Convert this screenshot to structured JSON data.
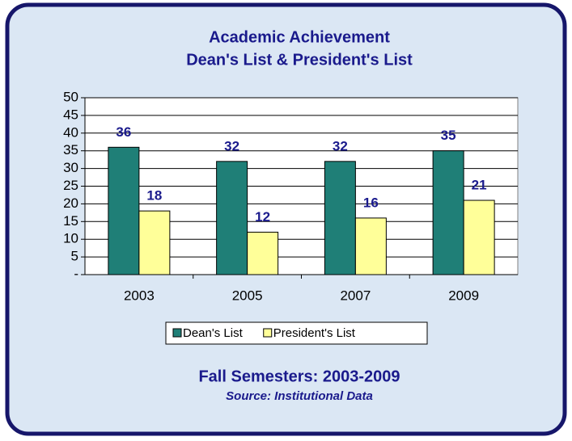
{
  "chart_data": {
    "type": "bar",
    "title": "Academic Achievement",
    "subtitle": "Dean's List & President's List",
    "categories": [
      "2003",
      "2005",
      "2007",
      "2009"
    ],
    "series": [
      {
        "name": "Dean's List",
        "color": "#1f7f77",
        "values": [
          36,
          32,
          32,
          35
        ]
      },
      {
        "name": "President's List",
        "color": "#ffff99",
        "values": [
          18,
          12,
          16,
          21
        ]
      }
    ],
    "ylim": [
      0,
      50
    ],
    "yticks": [
      {
        "value": 0,
        "label": "-"
      },
      5,
      10,
      15,
      20,
      25,
      30,
      35,
      40,
      45,
      50
    ],
    "grid": true,
    "legend": "bottom",
    "footer": "Fall Semesters: 2003-2009",
    "source": "Source: Institutional Data"
  }
}
